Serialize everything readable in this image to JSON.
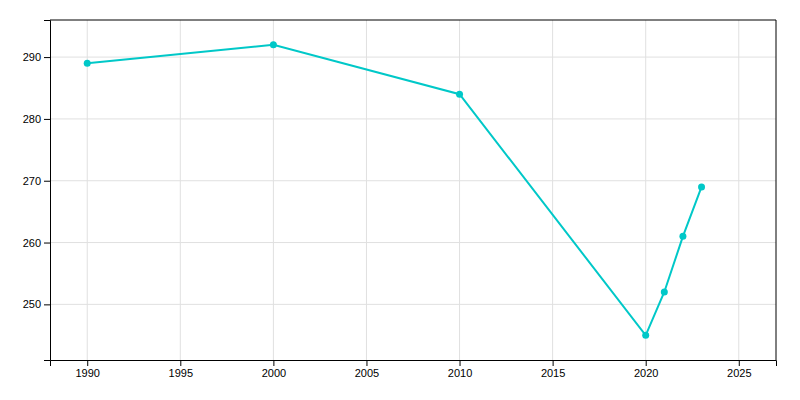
{
  "chart_data": {
    "type": "line",
    "x": [
      1990,
      2000,
      2010,
      2020,
      2021,
      2022,
      2023
    ],
    "values": [
      289,
      292,
      284,
      245,
      252,
      261,
      269
    ],
    "color": "#00C8C8",
    "marker": "circle",
    "xlim": [
      1988,
      2027
    ],
    "ylim": [
      241,
      296
    ],
    "xticks": [
      1990,
      1995,
      2000,
      2005,
      2010,
      2015,
      2020,
      2025
    ],
    "yticks": [
      250,
      260,
      270,
      280,
      290
    ],
    "grid": true
  }
}
